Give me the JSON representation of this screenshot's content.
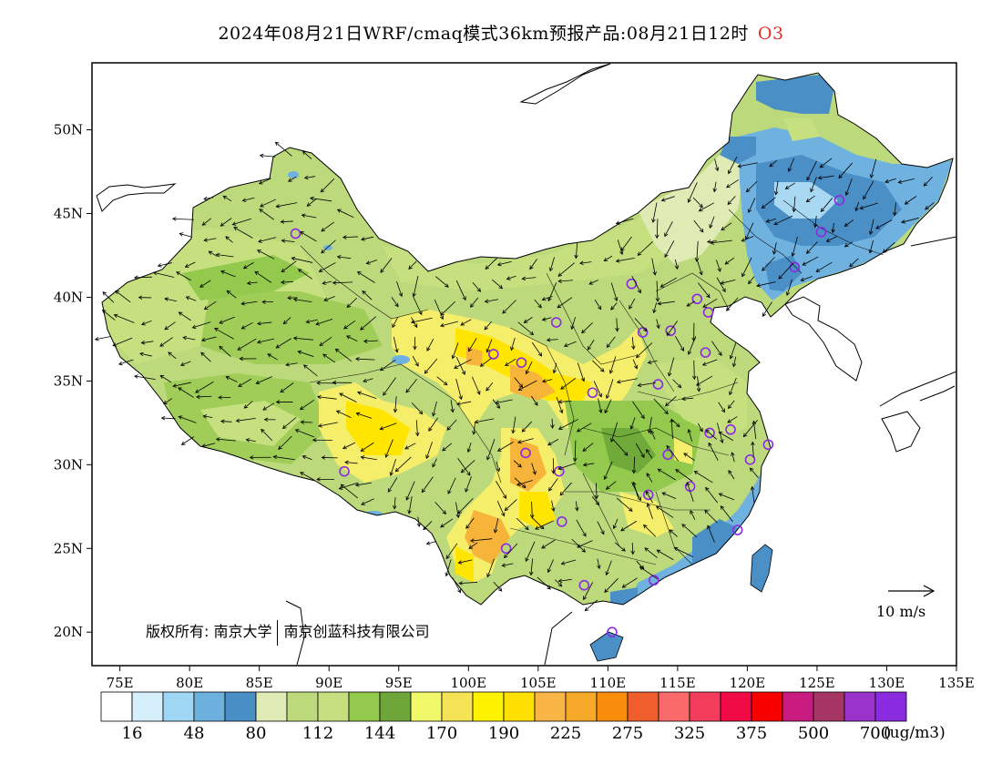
{
  "header": {
    "title": "2024年08月21日WRF/cmaq模式36km预报产品:08月21日12时",
    "species": "O3"
  },
  "map": {
    "lon_ticks": [
      "75E",
      "80E",
      "85E",
      "90E",
      "95E",
      "100E",
      "105E",
      "110E",
      "115E",
      "120E",
      "125E",
      "130E",
      "135E"
    ],
    "lat_ticks": [
      "50N",
      "45N",
      "40N",
      "35N",
      "30N",
      "25N",
      "20N"
    ],
    "lon_range": [
      73,
      135
    ],
    "lat_range": [
      18,
      54
    ],
    "colors": {
      "blue_dark": "#4b8fc7",
      "blue_mid": "#6fb2e0",
      "blue_light": "#a9d8f2",
      "green_pale": "#d9e8b0",
      "green_light": "#c2df7c",
      "green_mid": "#9fcd58",
      "green_dark": "#6faa3a",
      "yellow_light": "#f4ee6a",
      "yellow": "#ffe500",
      "orange": "#f7b43b"
    },
    "stations": [
      {
        "lon": 87.6,
        "lat": 43.8
      },
      {
        "lon": 91.1,
        "lat": 29.6
      },
      {
        "lon": 101.8,
        "lat": 36.6
      },
      {
        "lon": 103.8,
        "lat": 36.1
      },
      {
        "lon": 106.3,
        "lat": 38.5
      },
      {
        "lon": 111.7,
        "lat": 40.8
      },
      {
        "lon": 112.5,
        "lat": 37.9
      },
      {
        "lon": 114.5,
        "lat": 38.0
      },
      {
        "lon": 116.4,
        "lat": 39.9
      },
      {
        "lon": 117.2,
        "lat": 39.1
      },
      {
        "lon": 117.0,
        "lat": 36.7
      },
      {
        "lon": 113.6,
        "lat": 34.8
      },
      {
        "lon": 108.9,
        "lat": 34.3
      },
      {
        "lon": 104.1,
        "lat": 30.7
      },
      {
        "lon": 106.5,
        "lat": 29.6
      },
      {
        "lon": 106.7,
        "lat": 26.6
      },
      {
        "lon": 102.7,
        "lat": 25.0
      },
      {
        "lon": 108.3,
        "lat": 22.8
      },
      {
        "lon": 113.3,
        "lat": 23.1
      },
      {
        "lon": 110.3,
        "lat": 20.0
      },
      {
        "lon": 112.9,
        "lat": 28.2
      },
      {
        "lon": 114.3,
        "lat": 30.6
      },
      {
        "lon": 115.9,
        "lat": 28.7
      },
      {
        "lon": 117.3,
        "lat": 31.9
      },
      {
        "lon": 118.8,
        "lat": 32.1
      },
      {
        "lon": 120.2,
        "lat": 30.3
      },
      {
        "lon": 121.5,
        "lat": 31.2
      },
      {
        "lon": 119.3,
        "lat": 26.1
      },
      {
        "lon": 123.4,
        "lat": 41.8
      },
      {
        "lon": 125.3,
        "lat": 43.9
      },
      {
        "lon": 126.6,
        "lat": 45.8
      }
    ],
    "copyright_1": "版权所有: 南京大学",
    "copyright_2": "南京创蓝科技有限公司",
    "wind_reference": "10 m/s"
  },
  "colorbar": {
    "colors": [
      "#ffffff",
      "#d6f0fb",
      "#9fd6f3",
      "#6cb1de",
      "#4a8ec6",
      "#dfeab5",
      "#bcd97c",
      "#c7e07f",
      "#93c94d",
      "#6ea63a",
      "#f1f96a",
      "#f5e355",
      "#fff200",
      "#ffe000",
      "#f8b545",
      "#f6a829",
      "#f98c0b",
      "#f05e2e",
      "#fb6a6a",
      "#f43c5c",
      "#f00a46",
      "#f80000",
      "#c91b7f",
      "#a53563",
      "#9933cc",
      "#8a2be2"
    ],
    "labels": [
      "16",
      "48",
      "80",
      "112",
      "144",
      "170",
      "190",
      "225",
      "275",
      "325",
      "375",
      "500",
      "700"
    ],
    "unit": "(ug/m3)"
  }
}
